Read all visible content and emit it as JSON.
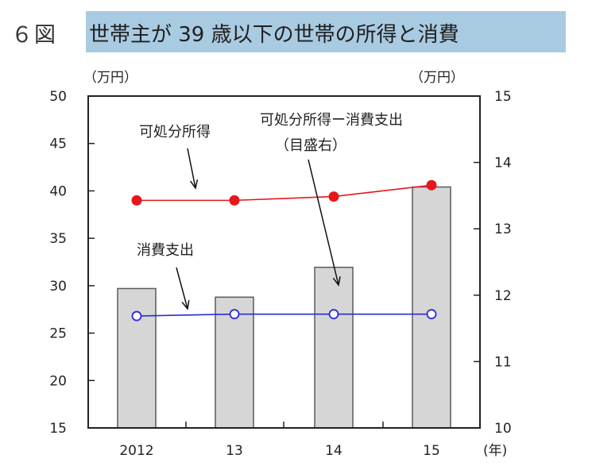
{
  "figure": {
    "number": "６図",
    "title": "世帯主が 39 歳以下の世帯の所得と消費"
  },
  "chart_data": {
    "type": "bar",
    "categories": [
      "2012",
      "13",
      "14",
      "15"
    ],
    "x_unit": "(年)",
    "left_axis": {
      "unit": "（万円）",
      "ylim": [
        15,
        50
      ],
      "ticks": [
        15,
        20,
        25,
        30,
        35,
        40,
        45,
        50
      ]
    },
    "right_axis": {
      "unit": "（万円）",
      "ylim": [
        10,
        15
      ],
      "ticks": [
        10,
        11,
        12,
        13,
        14,
        15
      ]
    },
    "series": [
      {
        "name": "可処分所得−消費支出",
        "kind": "bar",
        "axis": "right",
        "values": [
          12.1,
          11.97,
          12.42,
          13.63
        ]
      },
      {
        "name": "可処分所得",
        "kind": "line",
        "axis": "left",
        "color": "#e8161c",
        "marker": "filled-circle",
        "values": [
          39.0,
          39.0,
          39.4,
          40.6
        ]
      },
      {
        "name": "消費支出",
        "kind": "line",
        "axis": "left",
        "color": "#2a2ad8",
        "marker": "open-circle",
        "values": [
          26.8,
          27.0,
          27.0,
          27.0
        ]
      }
    ],
    "annotations": [
      {
        "text": "可処分所得",
        "target": "可処分所得"
      },
      {
        "text": "可処分所得ー消費支出",
        "subtext": "（目盛右）",
        "target": "可処分所得−消費支出"
      },
      {
        "text": "消費支出",
        "target": "消費支出"
      }
    ],
    "colors": {
      "bar_fill": "#d6d6d6",
      "bar_stroke": "#5a5a5a",
      "axis": "#222222"
    }
  }
}
